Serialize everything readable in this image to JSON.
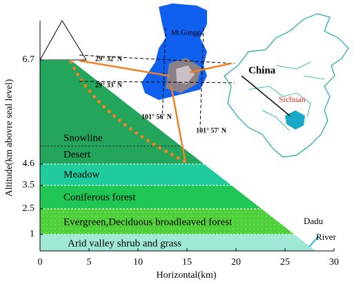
{
  "axes": {
    "x_label": "Horizontal(km)",
    "y_label": "Altitude(km abovre seal level)",
    "xlim": [
      0,
      30
    ],
    "xticks": [
      0,
      5,
      10,
      15,
      20,
      25,
      30
    ],
    "yticks": [
      1,
      2.5,
      3.5,
      4.6,
      6.7
    ]
  },
  "zones": [
    "Arid valley shrub and grass",
    "Evergreen,Deciduous broadleaved forest",
    "Coniferous forest",
    "Meadow",
    "Desert",
    "Snowline"
  ],
  "map": {
    "peak": "Mt.Gongga",
    "lat1": "29° 32′ N",
    "lat2": "29° 33′ N",
    "lon1": "101° 56′ N",
    "lon2": "101° 57′ N",
    "country": "China",
    "province": "Sichuan"
  },
  "river": [
    "Dadu",
    "River"
  ]
}
